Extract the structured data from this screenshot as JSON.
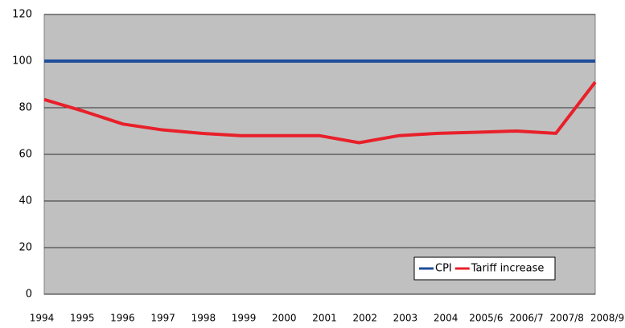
{
  "chart_data": {
    "type": "line",
    "categories": [
      "1994",
      "1995",
      "1996",
      "1997",
      "1998",
      "1999",
      "2000",
      "2001",
      "2002",
      "2003",
      "2004",
      "2005/6",
      "2006/7",
      "2007/8",
      "2008/9"
    ],
    "series": [
      {
        "name": "CPI",
        "color": "#1f4e9a",
        "values": [
          100,
          100,
          100,
          100,
          100,
          100,
          100,
          100,
          100,
          100,
          100,
          100,
          100,
          100,
          100
        ]
      },
      {
        "name": "Tariff increase",
        "color": "#e8202a",
        "values": [
          83.5,
          78.5,
          73,
          70.5,
          69,
          68,
          68,
          68,
          65,
          68,
          69,
          69.5,
          70,
          69,
          91
        ]
      }
    ],
    "ylim": [
      0,
      120
    ],
    "yticks": [
      0,
      20,
      40,
      60,
      80,
      100,
      120
    ],
    "grid": true,
    "legend": "lower right"
  }
}
